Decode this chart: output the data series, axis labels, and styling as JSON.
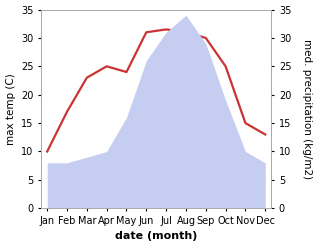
{
  "months": [
    "Jan",
    "Feb",
    "Mar",
    "Apr",
    "May",
    "Jun",
    "Jul",
    "Aug",
    "Sep",
    "Oct",
    "Nov",
    "Dec"
  ],
  "temperature": [
    10,
    17,
    23,
    25,
    24,
    31,
    31.5,
    31,
    30,
    25,
    15,
    13
  ],
  "precipitation": [
    8,
    8,
    9,
    10,
    16,
    26,
    31,
    34,
    29,
    19,
    10,
    8
  ],
  "temp_color": "#cc3333",
  "precip_fill_color": "#c5cef0",
  "ylabel_left": "max temp (C)",
  "ylabel_right": "med. precipitation (kg/m2)",
  "xlabel": "date (month)",
  "ylim": [
    0,
    35
  ],
  "yticks": [
    0,
    5,
    10,
    15,
    20,
    25,
    30,
    35
  ],
  "background_color": "#ffffff",
  "temp_linewidth": 1.6,
  "xlabel_fontsize": 8,
  "ylabel_fontsize": 7.5,
  "tick_fontsize": 7
}
